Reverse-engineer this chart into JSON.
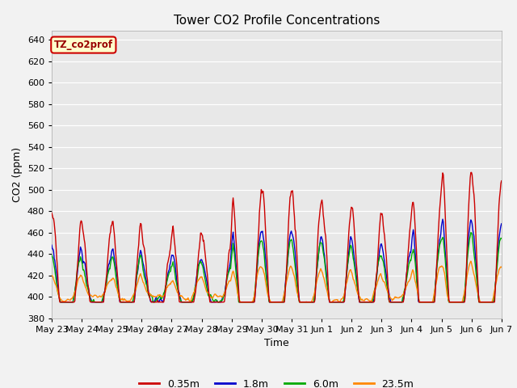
{
  "title": "Tower CO2 Profile Concentrations",
  "xlabel": "Time",
  "ylabel": "CO2 (ppm)",
  "ylim": [
    380,
    648
  ],
  "yticks": [
    380,
    400,
    420,
    440,
    460,
    480,
    500,
    520,
    540,
    560,
    580,
    600,
    620,
    640
  ],
  "date_labels": [
    "May 23",
    "May 24",
    "May 25",
    "May 26",
    "May 27",
    "May 28",
    "May 29",
    "May 30",
    "May 31",
    "Jun 1",
    "Jun 2",
    "Jun 3",
    "Jun 4",
    "Jun 5",
    "Jun 6",
    "Jun 7"
  ],
  "series_labels": [
    "0.35m",
    "1.8m",
    "6.0m",
    "23.5m"
  ],
  "series_colors": [
    "#cc0000",
    "#0000cc",
    "#00aa00",
    "#ff8800"
  ],
  "legend_label": "TZ_co2prof",
  "legend_bg": "#ffffcc",
  "legend_edge": "#cc0000",
  "plot_bg": "#e8e8e8",
  "fig_bg": "#f2f2f2",
  "n_days": 15,
  "pts_per_day": 48
}
